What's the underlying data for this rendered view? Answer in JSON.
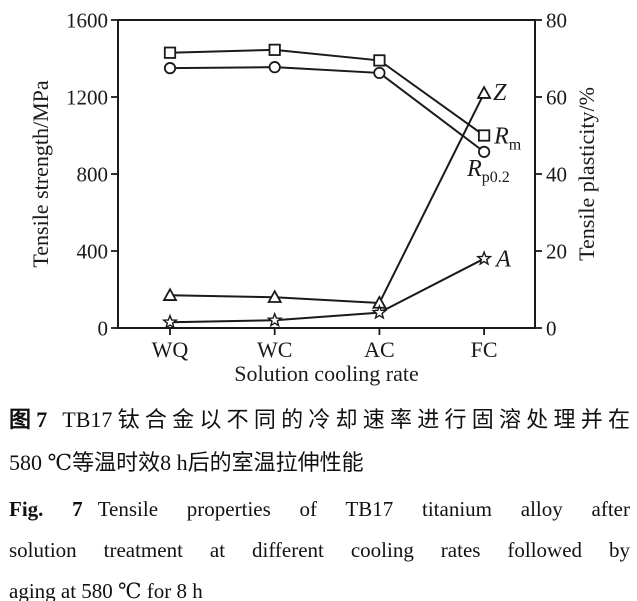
{
  "chart_data": {
    "type": "line",
    "title": "",
    "categories": [
      "WQ",
      "WC",
      "AC",
      "FC"
    ],
    "xlabel": "Solution cooling rate",
    "grid": false,
    "legend_position": "inline-annotations-at-last-point",
    "left_axis": {
      "label": "Tensile strength/MPa",
      "min": 0,
      "max": 1600,
      "ticks": [
        0,
        400,
        800,
        1200,
        1600
      ]
    },
    "right_axis": {
      "label": "Tensile plasticity/%",
      "min": 0,
      "max": 80,
      "ticks": [
        0,
        20,
        40,
        60,
        80
      ]
    },
    "series": [
      {
        "name": "Rm",
        "label_main": "R",
        "label_sub": "m",
        "axis": "left",
        "marker": "square",
        "values": [
          1430,
          1445,
          1390,
          1000
        ]
      },
      {
        "name": "Rp0.2",
        "label_main": "R",
        "label_sub": "p0.2",
        "axis": "left",
        "marker": "circle",
        "values": [
          1350,
          1355,
          1325,
          915
        ]
      },
      {
        "name": "Z",
        "label_main": "Z",
        "label_sub": "",
        "axis": "right",
        "marker": "triangle",
        "values": [
          8.5,
          8,
          6.5,
          61
        ]
      },
      {
        "name": "A",
        "label_main": "A",
        "label_sub": "",
        "axis": "right",
        "marker": "star",
        "values": [
          1.5,
          2,
          4,
          18
        ]
      }
    ]
  },
  "captions": {
    "zh": {
      "prefix": "图7",
      "line1": "TB17钛合金以不同的冷却速率进行固溶处理并在",
      "line2": "580 ℃等温时效8 h后的室温拉伸性能"
    },
    "en": {
      "prefix": "Fig. 7",
      "line1": "Tensile properties of TB17 titanium alloy after",
      "line2": "solution treatment at different cooling rates followed by",
      "line3": "aging at 580 ℃ for 8 h"
    }
  },
  "colors": {
    "line": "#1a1a1a",
    "text": "#111111",
    "background": "#ffffff"
  }
}
